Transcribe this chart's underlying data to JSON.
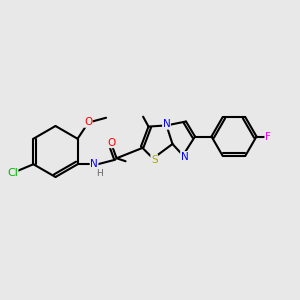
{
  "background_color": "#e8e8e8",
  "figsize": [
    3.0,
    3.0
  ],
  "dpi": 100,
  "bond_color": "#000000",
  "bond_lw": 1.5,
  "atom_colors": {
    "C": "#000000",
    "N": "#0000ff",
    "O": "#ff0000",
    "S": "#aaaa00",
    "Cl": "#00bb00",
    "F": "#ff00ff",
    "H": "#666666"
  },
  "font_size": 7.5
}
